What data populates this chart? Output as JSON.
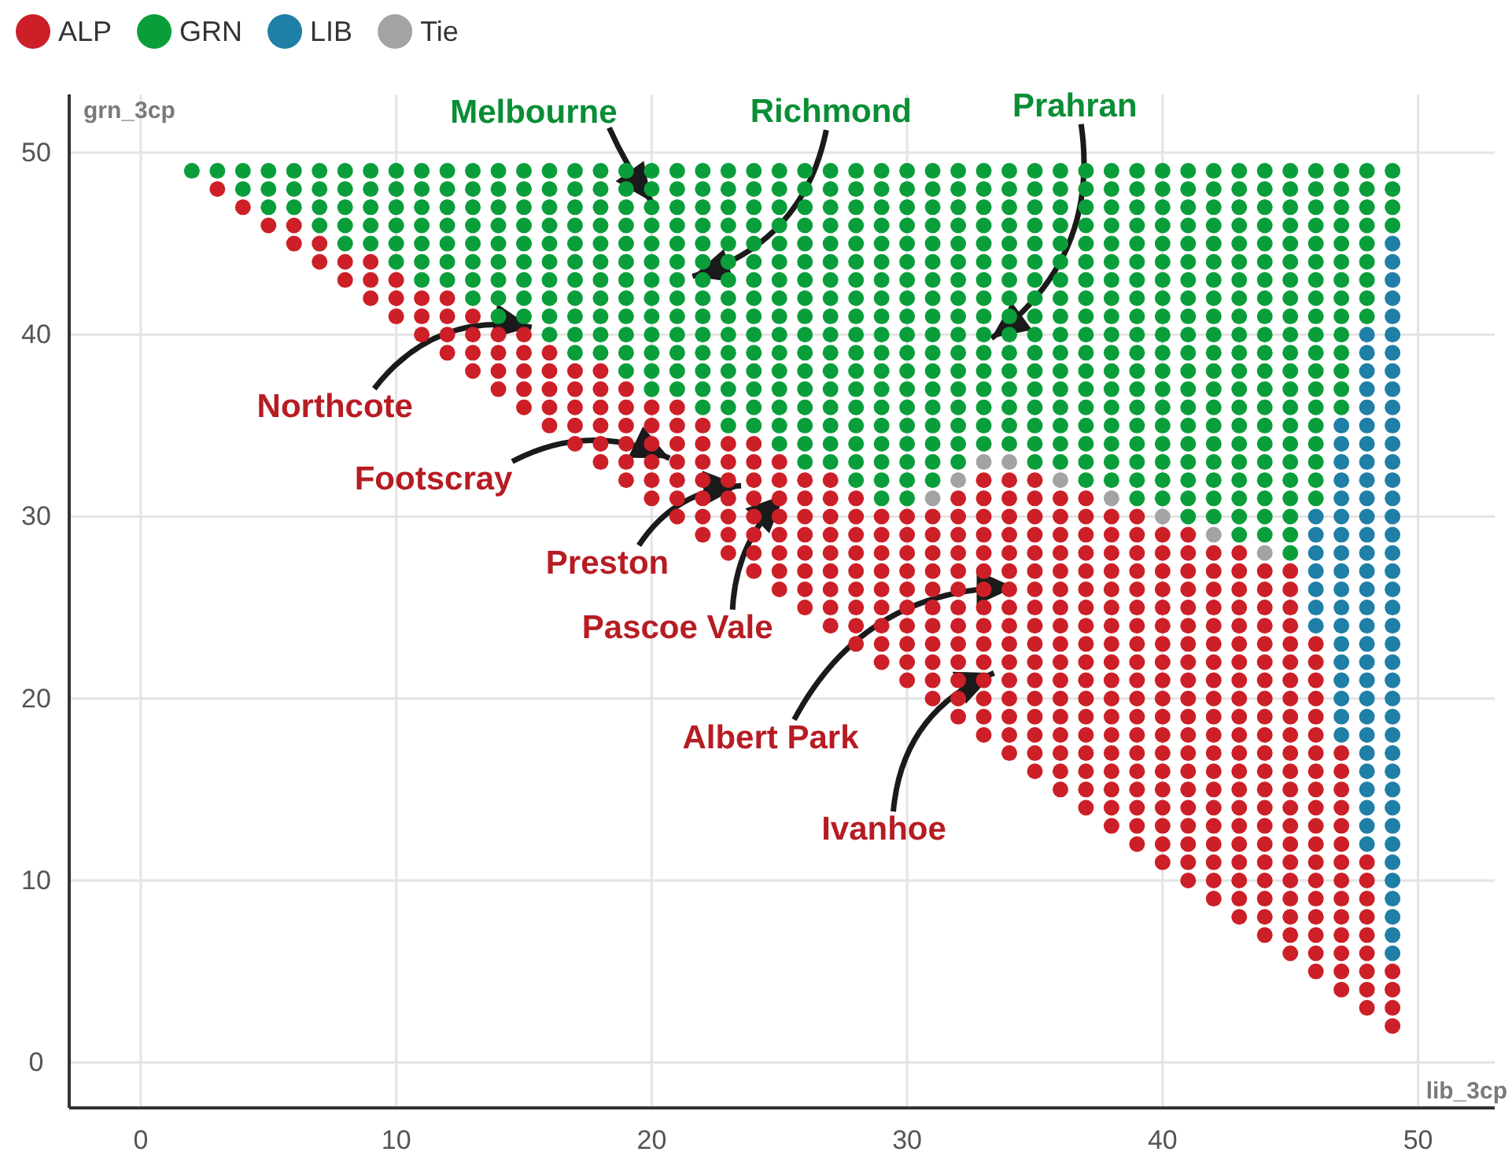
{
  "chart_data": {
    "type": "scatter",
    "xlabel": "lib_3cp",
    "ylabel": "grn_3cp",
    "xlim": [
      -2.8,
      53
    ],
    "ylim": [
      -2.5,
      53.2
    ],
    "xticks": [
      0,
      10,
      20,
      30,
      40,
      50
    ],
    "yticks": [
      0,
      10,
      20,
      30,
      40,
      50
    ],
    "grid": true,
    "legend": "top left",
    "marker": "circle",
    "series": [
      {
        "name": "ALP",
        "color": "#cc1f27",
        "x": [
          3,
          4,
          5,
          6,
          6,
          7,
          7,
          8,
          8,
          9,
          9,
          9,
          10,
          10,
          10,
          11,
          11,
          11,
          12,
          12,
          12,
          12,
          13,
          13,
          13,
          13,
          14,
          14,
          14,
          14,
          15,
          15,
          15,
          15,
          15,
          16,
          16,
          16,
          16,
          16,
          17,
          17,
          17,
          17,
          17,
          18,
          18,
          18,
          18,
          18,
          18,
          19,
          19,
          19,
          19,
          19,
          19,
          20,
          20,
          20,
          20,
          20,
          20,
          21,
          21,
          21,
          21,
          21,
          21,
          21,
          22,
          22,
          22,
          22,
          22,
          22,
          22,
          23,
          23,
          23,
          23,
          23,
          23,
          23,
          24,
          24,
          24,
          24,
          24,
          24,
          24,
          24,
          25,
          25,
          25,
          25,
          25,
          25,
          25,
          25,
          26,
          26,
          26,
          26,
          26,
          26,
          26,
          26,
          27,
          27,
          27,
          27,
          27,
          27,
          27,
          27,
          27,
          28,
          28,
          28,
          28,
          28,
          28,
          28,
          28,
          28,
          29,
          29,
          29,
          29,
          29,
          29,
          29,
          29,
          29,
          30,
          30,
          30,
          30,
          30,
          30,
          30,
          30,
          30,
          30,
          31,
          31,
          31,
          31,
          31,
          31,
          31,
          31,
          31,
          31,
          31,
          32,
          32,
          32,
          32,
          32,
          32,
          32,
          32,
          32,
          32,
          32,
          32,
          32,
          33,
          33,
          33,
          33,
          33,
          33,
          33,
          33,
          33,
          33,
          33,
          33,
          33,
          33,
          33,
          34,
          34,
          34,
          34,
          34,
          34,
          34,
          34,
          34,
          34,
          34,
          34,
          34,
          34,
          34,
          34,
          35,
          35,
          35,
          35,
          35,
          35,
          35,
          35,
          35,
          35,
          35,
          35,
          35,
          35,
          35,
          35,
          35,
          36,
          36,
          36,
          36,
          36,
          36,
          36,
          36,
          36,
          36,
          36,
          36,
          36,
          36,
          36,
          36,
          36,
          37,
          37,
          37,
          37,
          37,
          37,
          37,
          37,
          37,
          37,
          37,
          37,
          37,
          37,
          37,
          37,
          37,
          37,
          38,
          38,
          38,
          38,
          38,
          38,
          38,
          38,
          38,
          38,
          38,
          38,
          38,
          38,
          38,
          38,
          38,
          38,
          39,
          39,
          39,
          39,
          39,
          39,
          39,
          39,
          39,
          39,
          39,
          39,
          39,
          39,
          39,
          39,
          39,
          39,
          39,
          40,
          40,
          40,
          40,
          40,
          40,
          40,
          40,
          40,
          40,
          40,
          40,
          40,
          40,
          40,
          40,
          40,
          40,
          40,
          41,
          41,
          41,
          41,
          41,
          41,
          41,
          41,
          41,
          41,
          41,
          41,
          41,
          41,
          41,
          41,
          41,
          41,
          41,
          41,
          42,
          42,
          42,
          42,
          42,
          42,
          42,
          42,
          42,
          42,
          42,
          42,
          42,
          42,
          42,
          42,
          42,
          42,
          42,
          42,
          43,
          43,
          43,
          43,
          43,
          43,
          43,
          43,
          43,
          43,
          43,
          43,
          43,
          43,
          43,
          43,
          43,
          43,
          43,
          43,
          43,
          44,
          44,
          44,
          44,
          44,
          44,
          44,
          44,
          44,
          44,
          44,
          44,
          44,
          44,
          44,
          44,
          44,
          44,
          44,
          44,
          44,
          45,
          45,
          45,
          45,
          45,
          45,
          45,
          45,
          45,
          45,
          45,
          45,
          45,
          45,
          45,
          45,
          45,
          45,
          45,
          45,
          45,
          45,
          46,
          46,
          46,
          46,
          46,
          46,
          46,
          46,
          46,
          46,
          46,
          46,
          46,
          46,
          46,
          46,
          46,
          46,
          46,
          47,
          47,
          47,
          47,
          47,
          47,
          47,
          47,
          47,
          47,
          47,
          47,
          47,
          47,
          48,
          48,
          48,
          48,
          48,
          48,
          48,
          48,
          48,
          49,
          49,
          49,
          49
        ],
        "values": [
          48,
          47,
          46,
          45,
          46,
          44,
          45,
          43,
          44,
          42,
          43,
          44,
          41,
          42,
          43,
          40,
          41,
          42,
          39,
          40,
          41,
          42,
          38,
          39,
          40,
          41,
          37,
          38,
          39,
          40,
          36,
          37,
          38,
          39,
          40,
          35,
          36,
          37,
          38,
          39,
          34,
          35,
          36,
          37,
          38,
          33,
          34,
          35,
          36,
          37,
          38,
          32,
          33,
          34,
          35,
          36,
          37,
          31,
          32,
          33,
          34,
          35,
          36,
          30,
          31,
          32,
          33,
          34,
          35,
          36,
          29,
          30,
          31,
          32,
          33,
          34,
          35,
          28,
          29,
          30,
          31,
          32,
          33,
          34,
          27,
          28,
          29,
          30,
          31,
          32,
          33,
          34,
          26,
          27,
          28,
          29,
          30,
          31,
          32,
          33,
          25,
          26,
          27,
          28,
          29,
          30,
          31,
          32,
          24,
          25,
          26,
          27,
          28,
          29,
          30,
          31,
          32,
          23,
          24,
          25,
          26,
          27,
          28,
          29,
          30,
          31,
          22,
          23,
          24,
          25,
          26,
          27,
          28,
          29,
          30,
          21,
          22,
          23,
          24,
          25,
          26,
          27,
          28,
          29,
          30,
          20,
          21,
          22,
          23,
          24,
          25,
          26,
          27,
          28,
          29,
          30,
          19,
          20,
          21,
          22,
          23,
          24,
          25,
          26,
          27,
          28,
          29,
          30,
          31,
          18,
          19,
          20,
          21,
          22,
          23,
          24,
          25,
          26,
          27,
          28,
          29,
          30,
          31,
          32,
          17,
          18,
          19,
          20,
          21,
          22,
          23,
          24,
          25,
          26,
          27,
          28,
          29,
          30,
          31,
          32,
          16,
          17,
          18,
          19,
          20,
          21,
          22,
          23,
          24,
          25,
          26,
          27,
          28,
          29,
          30,
          31,
          32,
          15,
          16,
          17,
          18,
          19,
          20,
          21,
          22,
          23,
          24,
          25,
          26,
          27,
          28,
          29,
          30,
          31,
          14,
          15,
          16,
          17,
          18,
          19,
          20,
          21,
          22,
          23,
          24,
          25,
          26,
          27,
          28,
          29,
          30,
          31,
          13,
          14,
          15,
          16,
          17,
          18,
          19,
          20,
          21,
          22,
          23,
          24,
          25,
          26,
          27,
          28,
          29,
          30,
          12,
          13,
          14,
          15,
          16,
          17,
          18,
          19,
          20,
          21,
          22,
          23,
          24,
          25,
          26,
          27,
          28,
          29,
          30,
          11,
          12,
          13,
          14,
          15,
          16,
          17,
          18,
          19,
          20,
          21,
          22,
          23,
          24,
          25,
          26,
          27,
          28,
          29,
          10,
          11,
          12,
          13,
          14,
          15,
          16,
          17,
          18,
          19,
          20,
          21,
          22,
          23,
          24,
          25,
          26,
          27,
          28,
          29,
          9,
          10,
          11,
          12,
          13,
          14,
          15,
          16,
          17,
          18,
          19,
          20,
          21,
          22,
          23,
          24,
          25,
          26,
          27,
          28,
          8,
          9,
          10,
          11,
          12,
          13,
          14,
          15,
          16,
          17,
          18,
          19,
          20,
          21,
          22,
          23,
          24,
          25,
          26,
          27,
          28,
          7,
          8,
          9,
          10,
          11,
          12,
          13,
          14,
          15,
          16,
          17,
          18,
          19,
          20,
          21,
          22,
          23,
          24,
          25,
          26,
          27,
          6,
          7,
          8,
          9,
          10,
          11,
          12,
          13,
          14,
          15,
          16,
          17,
          18,
          19,
          20,
          21,
          22,
          23,
          24,
          25,
          26,
          27,
          5,
          6,
          7,
          8,
          9,
          10,
          11,
          12,
          13,
          14,
          15,
          16,
          17,
          18,
          19,
          20,
          21,
          22,
          23,
          4,
          5,
          6,
          7,
          8,
          9,
          10,
          11,
          12,
          13,
          14,
          15,
          16,
          17,
          3,
          4,
          5,
          6,
          7,
          8,
          9,
          10,
          11,
          2,
          3,
          4,
          5
        ]
      },
      {
        "name": "GRN",
        "color": "#0a9e3b",
        "x": [
          2,
          3,
          4,
          4,
          5,
          5,
          5,
          6,
          6,
          6,
          7,
          7,
          7,
          7,
          8,
          8,
          8,
          8,
          8,
          9,
          9,
          9,
          9,
          9,
          10,
          10,
          10,
          10,
          10,
          10,
          11,
          11,
          11,
          11,
          11,
          11,
          11,
          12,
          12,
          12,
          12,
          12,
          12,
          12,
          13,
          13,
          13,
          13,
          13,
          13,
          13,
          13,
          14,
          14,
          14,
          14,
          14,
          14,
          14,
          14,
          14,
          15,
          15,
          15,
          15,
          15,
          15,
          15,
          15,
          15,
          16,
          16,
          16,
          16,
          16,
          16,
          16,
          16,
          16,
          16,
          17,
          17,
          17,
          17,
          17,
          17,
          17,
          17,
          17,
          17,
          17,
          18,
          18,
          18,
          18,
          18,
          18,
          18,
          18,
          18,
          18,
          18,
          19,
          19,
          19,
          19,
          19,
          19,
          19,
          19,
          19,
          19,
          19,
          19,
          20,
          20,
          20,
          20,
          20,
          20,
          20,
          20,
          20,
          20,
          20,
          20,
          20,
          21,
          21,
          21,
          21,
          21,
          21,
          21,
          21,
          21,
          21,
          21,
          21,
          21,
          22,
          22,
          22,
          22,
          22,
          22,
          22,
          22,
          22,
          22,
          22,
          22,
          22,
          22,
          23,
          23,
          23,
          23,
          23,
          23,
          23,
          23,
          23,
          23,
          23,
          23,
          23,
          23,
          23,
          24,
          24,
          24,
          24,
          24,
          24,
          24,
          24,
          24,
          24,
          24,
          24,
          24,
          24,
          24,
          25,
          25,
          25,
          25,
          25,
          25,
          25,
          25,
          25,
          25,
          25,
          25,
          25,
          25,
          25,
          25,
          26,
          26,
          26,
          26,
          26,
          26,
          26,
          26,
          26,
          26,
          26,
          26,
          26,
          26,
          26,
          26,
          26,
          27,
          27,
          27,
          27,
          27,
          27,
          27,
          27,
          27,
          27,
          27,
          27,
          27,
          27,
          27,
          27,
          27,
          28,
          28,
          28,
          28,
          28,
          28,
          28,
          28,
          28,
          28,
          28,
          28,
          28,
          28,
          28,
          28,
          28,
          28,
          29,
          29,
          29,
          29,
          29,
          29,
          29,
          29,
          29,
          29,
          29,
          29,
          29,
          29,
          29,
          29,
          29,
          29,
          29,
          30,
          30,
          30,
          30,
          30,
          30,
          30,
          30,
          30,
          30,
          30,
          30,
          30,
          30,
          30,
          30,
          30,
          30,
          30,
          31,
          31,
          31,
          31,
          31,
          31,
          31,
          31,
          31,
          31,
          31,
          31,
          31,
          31,
          31,
          31,
          31,
          31,
          32,
          32,
          32,
          32,
          32,
          32,
          32,
          32,
          32,
          32,
          32,
          32,
          32,
          32,
          32,
          32,
          32,
          33,
          33,
          33,
          33,
          33,
          33,
          33,
          33,
          33,
          33,
          33,
          33,
          33,
          33,
          33,
          33,
          34,
          34,
          34,
          34,
          34,
          34,
          34,
          34,
          34,
          34,
          34,
          34,
          34,
          34,
          34,
          34,
          35,
          35,
          35,
          35,
          35,
          35,
          35,
          35,
          35,
          35,
          35,
          35,
          35,
          35,
          35,
          35,
          35,
          36,
          36,
          36,
          36,
          36,
          36,
          36,
          36,
          36,
          36,
          36,
          36,
          36,
          36,
          36,
          36,
          36,
          37,
          37,
          37,
          37,
          37,
          37,
          37,
          37,
          37,
          37,
          37,
          37,
          37,
          37,
          37,
          37,
          37,
          37,
          38,
          38,
          38,
          38,
          38,
          38,
          38,
          38,
          38,
          38,
          38,
          38,
          38,
          38,
          38,
          38,
          38,
          38,
          39,
          39,
          39,
          39,
          39,
          39,
          39,
          39,
          39,
          39,
          39,
          39,
          39,
          39,
          39,
          39,
          39,
          39,
          39,
          40,
          40,
          40,
          40,
          40,
          40,
          40,
          40,
          40,
          40,
          40,
          40,
          40,
          40,
          40,
          40,
          40,
          40,
          40,
          41,
          41,
          41,
          41,
          41,
          41,
          41,
          41,
          41,
          41,
          41,
          41,
          41,
          41,
          41,
          41,
          41,
          41,
          41,
          41,
          42,
          42,
          42,
          42,
          42,
          42,
          42,
          42,
          42,
          42,
          42,
          42,
          42,
          42,
          42,
          42,
          42,
          42,
          42,
          42,
          43,
          43,
          43,
          43,
          43,
          43,
          43,
          43,
          43,
          43,
          43,
          43,
          43,
          43,
          43,
          43,
          43,
          43,
          43,
          43,
          43,
          44,
          44,
          44,
          44,
          44,
          44,
          44,
          44,
          44,
          44,
          44,
          44,
          44,
          44,
          44,
          44,
          44,
          44,
          44,
          44,
          44,
          45,
          45,
          45,
          45,
          45,
          45,
          45,
          45,
          45,
          45,
          45,
          45,
          45,
          45,
          45,
          45,
          45,
          45,
          45,
          45,
          45,
          45,
          46,
          46,
          46,
          46,
          46,
          46,
          46,
          46,
          46,
          46,
          46,
          46,
          46,
          46,
          46,
          46,
          46,
          46,
          46,
          47,
          47,
          47,
          47,
          47,
          47,
          47,
          47,
          47,
          47,
          47,
          47,
          47,
          47,
          48,
          48,
          48,
          48,
          48,
          48,
          48,
          48,
          48,
          49,
          49,
          49,
          49
        ],
        "values": [
          49,
          49,
          48,
          49,
          47,
          48,
          49,
          47,
          48,
          49,
          46,
          47,
          48,
          49,
          45,
          46,
          47,
          48,
          49,
          45,
          46,
          47,
          48,
          49,
          44,
          45,
          46,
          47,
          48,
          49,
          43,
          44,
          45,
          46,
          47,
          48,
          49,
          43,
          44,
          45,
          46,
          47,
          48,
          49,
          42,
          43,
          44,
          45,
          46,
          47,
          48,
          49,
          41,
          42,
          43,
          44,
          45,
          46,
          47,
          48,
          49,
          41,
          42,
          43,
          44,
          45,
          46,
          47,
          48,
          49,
          40,
          41,
          42,
          43,
          44,
          45,
          46,
          47,
          48,
          49,
          39,
          40,
          41,
          42,
          43,
          44,
          45,
          46,
          47,
          48,
          49,
          39,
          40,
          41,
          42,
          43,
          44,
          45,
          46,
          47,
          48,
          49,
          38,
          39,
          40,
          41,
          42,
          43,
          44,
          45,
          46,
          47,
          48,
          49,
          37,
          38,
          39,
          40,
          41,
          42,
          43,
          44,
          45,
          46,
          47,
          48,
          49,
          37,
          38,
          39,
          40,
          41,
          42,
          43,
          44,
          45,
          46,
          47,
          48,
          49,
          36,
          37,
          38,
          39,
          40,
          41,
          42,
          43,
          44,
          45,
          46,
          47,
          48,
          49,
          35,
          36,
          37,
          38,
          39,
          40,
          41,
          42,
          43,
          44,
          45,
          46,
          47,
          48,
          49,
          35,
          36,
          37,
          38,
          39,
          40,
          41,
          42,
          43,
          44,
          45,
          46,
          47,
          48,
          49,
          34,
          35,
          36,
          37,
          38,
          39,
          40,
          41,
          42,
          43,
          44,
          45,
          46,
          47,
          48,
          49,
          33,
          34,
          35,
          36,
          37,
          38,
          39,
          40,
          41,
          42,
          43,
          44,
          45,
          46,
          47,
          48,
          49,
          33,
          34,
          35,
          36,
          37,
          38,
          39,
          40,
          41,
          42,
          43,
          44,
          45,
          46,
          47,
          48,
          49,
          32,
          33,
          34,
          35,
          36,
          37,
          38,
          39,
          40,
          41,
          42,
          43,
          44,
          45,
          46,
          47,
          48,
          49,
          31,
          32,
          33,
          34,
          35,
          36,
          37,
          38,
          39,
          40,
          41,
          42,
          43,
          44,
          45,
          46,
          47,
          48,
          49,
          31,
          32,
          33,
          34,
          35,
          36,
          37,
          38,
          39,
          40,
          41,
          42,
          43,
          44,
          45,
          46,
          47,
          48,
          49,
          32,
          33,
          34,
          35,
          36,
          37,
          38,
          39,
          40,
          41,
          42,
          43,
          44,
          45,
          46,
          47,
          48,
          49,
          33,
          34,
          35,
          36,
          37,
          38,
          39,
          40,
          41,
          42,
          43,
          44,
          45,
          46,
          47,
          48,
          49,
          34,
          35,
          36,
          37,
          38,
          39,
          40,
          41,
          42,
          43,
          44,
          45,
          46,
          47,
          48,
          49,
          34,
          35,
          36,
          37,
          38,
          39,
          40,
          41,
          42,
          43,
          44,
          45,
          46,
          47,
          48,
          49,
          33,
          34,
          35,
          36,
          37,
          38,
          39,
          40,
          41,
          42,
          43,
          44,
          45,
          46,
          47,
          48,
          49,
          33,
          34,
          35,
          36,
          37,
          38,
          39,
          40,
          41,
          42,
          43,
          44,
          45,
          46,
          47,
          48,
          49,
          32,
          33,
          34,
          35,
          36,
          37,
          38,
          39,
          40,
          41,
          42,
          43,
          44,
          45,
          46,
          47,
          48,
          49,
          32,
          33,
          34,
          35,
          36,
          37,
          38,
          39,
          40,
          41,
          42,
          43,
          44,
          45,
          46,
          47,
          48,
          49,
          31,
          32,
          33,
          34,
          35,
          36,
          37,
          38,
          39,
          40,
          41,
          42,
          43,
          44,
          45,
          46,
          47,
          48,
          49,
          31,
          32,
          33,
          34,
          35,
          36,
          37,
          38,
          39,
          40,
          41,
          42,
          43,
          44,
          45,
          46,
          47,
          48,
          49,
          30,
          31,
          32,
          33,
          34,
          35,
          36,
          37,
          38,
          39,
          40,
          41,
          42,
          43,
          44,
          45,
          46,
          47,
          48,
          49,
          30,
          31,
          32,
          33,
          34,
          35,
          36,
          37,
          38,
          39,
          40,
          41,
          42,
          43,
          44,
          45,
          46,
          47,
          48,
          49,
          29,
          30,
          31,
          32,
          33,
          34,
          35,
          36,
          37,
          38,
          39,
          40,
          41,
          42,
          43,
          44,
          45,
          46,
          47,
          48,
          49,
          29,
          30,
          31,
          32,
          33,
          34,
          35,
          36,
          37,
          38,
          39,
          40,
          41,
          42,
          43,
          44,
          45,
          46,
          47,
          48,
          49,
          28,
          29,
          30,
          31,
          32,
          33,
          34,
          35,
          36,
          37,
          38,
          39,
          40,
          41,
          42,
          43,
          44,
          45,
          46,
          47,
          48,
          49,
          31,
          32,
          33,
          34,
          35,
          36,
          37,
          38,
          39,
          40,
          41,
          42,
          43,
          44,
          45,
          46,
          47,
          48,
          49,
          36,
          37,
          38,
          39,
          40,
          41,
          42,
          43,
          44,
          45,
          46,
          47,
          48,
          49,
          41,
          42,
          43,
          44,
          45,
          46,
          47,
          48,
          49,
          46,
          47,
          48,
          49
        ]
      },
      {
        "name": "LIB",
        "color": "#1f7fa6",
        "x": [
          46,
          46,
          46,
          46,
          46,
          46,
          46,
          47,
          47,
          47,
          47,
          47,
          47,
          47,
          47,
          47,
          47,
          47,
          47,
          47,
          47,
          47,
          47,
          47,
          47,
          48,
          48,
          48,
          48,
          48,
          48,
          48,
          48,
          48,
          48,
          48,
          48,
          48,
          48,
          48,
          48,
          48,
          48,
          48,
          48,
          48,
          48,
          48,
          48,
          48,
          48,
          48,
          48,
          48,
          49,
          49,
          49,
          49,
          49,
          49,
          49,
          49,
          49,
          49,
          49,
          49,
          49,
          49,
          49,
          49,
          49,
          49,
          49,
          49,
          49,
          49,
          49,
          49,
          49,
          49,
          49,
          49,
          49,
          49,
          49,
          49,
          49,
          49,
          49,
          49,
          49,
          49,
          49,
          49
        ],
        "values": [
          24,
          25,
          26,
          27,
          28,
          29,
          30,
          18,
          19,
          20,
          21,
          22,
          23,
          24,
          25,
          26,
          27,
          28,
          29,
          30,
          31,
          32,
          33,
          34,
          35,
          12,
          13,
          14,
          15,
          16,
          17,
          18,
          19,
          20,
          21,
          22,
          23,
          24,
          25,
          26,
          27,
          28,
          29,
          30,
          31,
          32,
          33,
          34,
          35,
          36,
          37,
          38,
          39,
          40,
          6,
          7,
          8,
          9,
          10,
          11,
          12,
          13,
          14,
          15,
          16,
          17,
          18,
          19,
          20,
          21,
          22,
          23,
          24,
          25,
          26,
          27,
          28,
          29,
          30,
          31,
          32,
          33,
          34,
          35,
          36,
          37,
          38,
          39,
          40,
          41,
          42,
          43,
          44,
          45
        ]
      },
      {
        "name": "Tie",
        "color": "#a3a3a3",
        "x": [
          31,
          32,
          33,
          34,
          36,
          38,
          40,
          42,
          44
        ],
        "values": [
          31,
          32,
          33,
          33,
          32,
          31,
          30,
          29,
          28
        ]
      }
    ],
    "annotations": [
      {
        "text": "Melbourne",
        "x": 20,
        "y": 47.3
      },
      {
        "text": "Richmond",
        "x": 21.6,
        "y": 43.2
      },
      {
        "text": "Prahran",
        "x": 33.3,
        "y": 39.8
      },
      {
        "text": "Northcote",
        "x": 15.3,
        "y": 40.4
      },
      {
        "text": "Footscray",
        "x": 20.7,
        "y": 33.2
      },
      {
        "text": "Preston",
        "x": 23.5,
        "y": 31.7
      },
      {
        "text": "Pascoe Vale",
        "x": 25.2,
        "y": 31.2
      },
      {
        "text": "Albert Park",
        "x": 34.2,
        "y": 26.1
      },
      {
        "text": "Ivanhoe",
        "x": 33.4,
        "y": 21.4
      }
    ]
  }
}
